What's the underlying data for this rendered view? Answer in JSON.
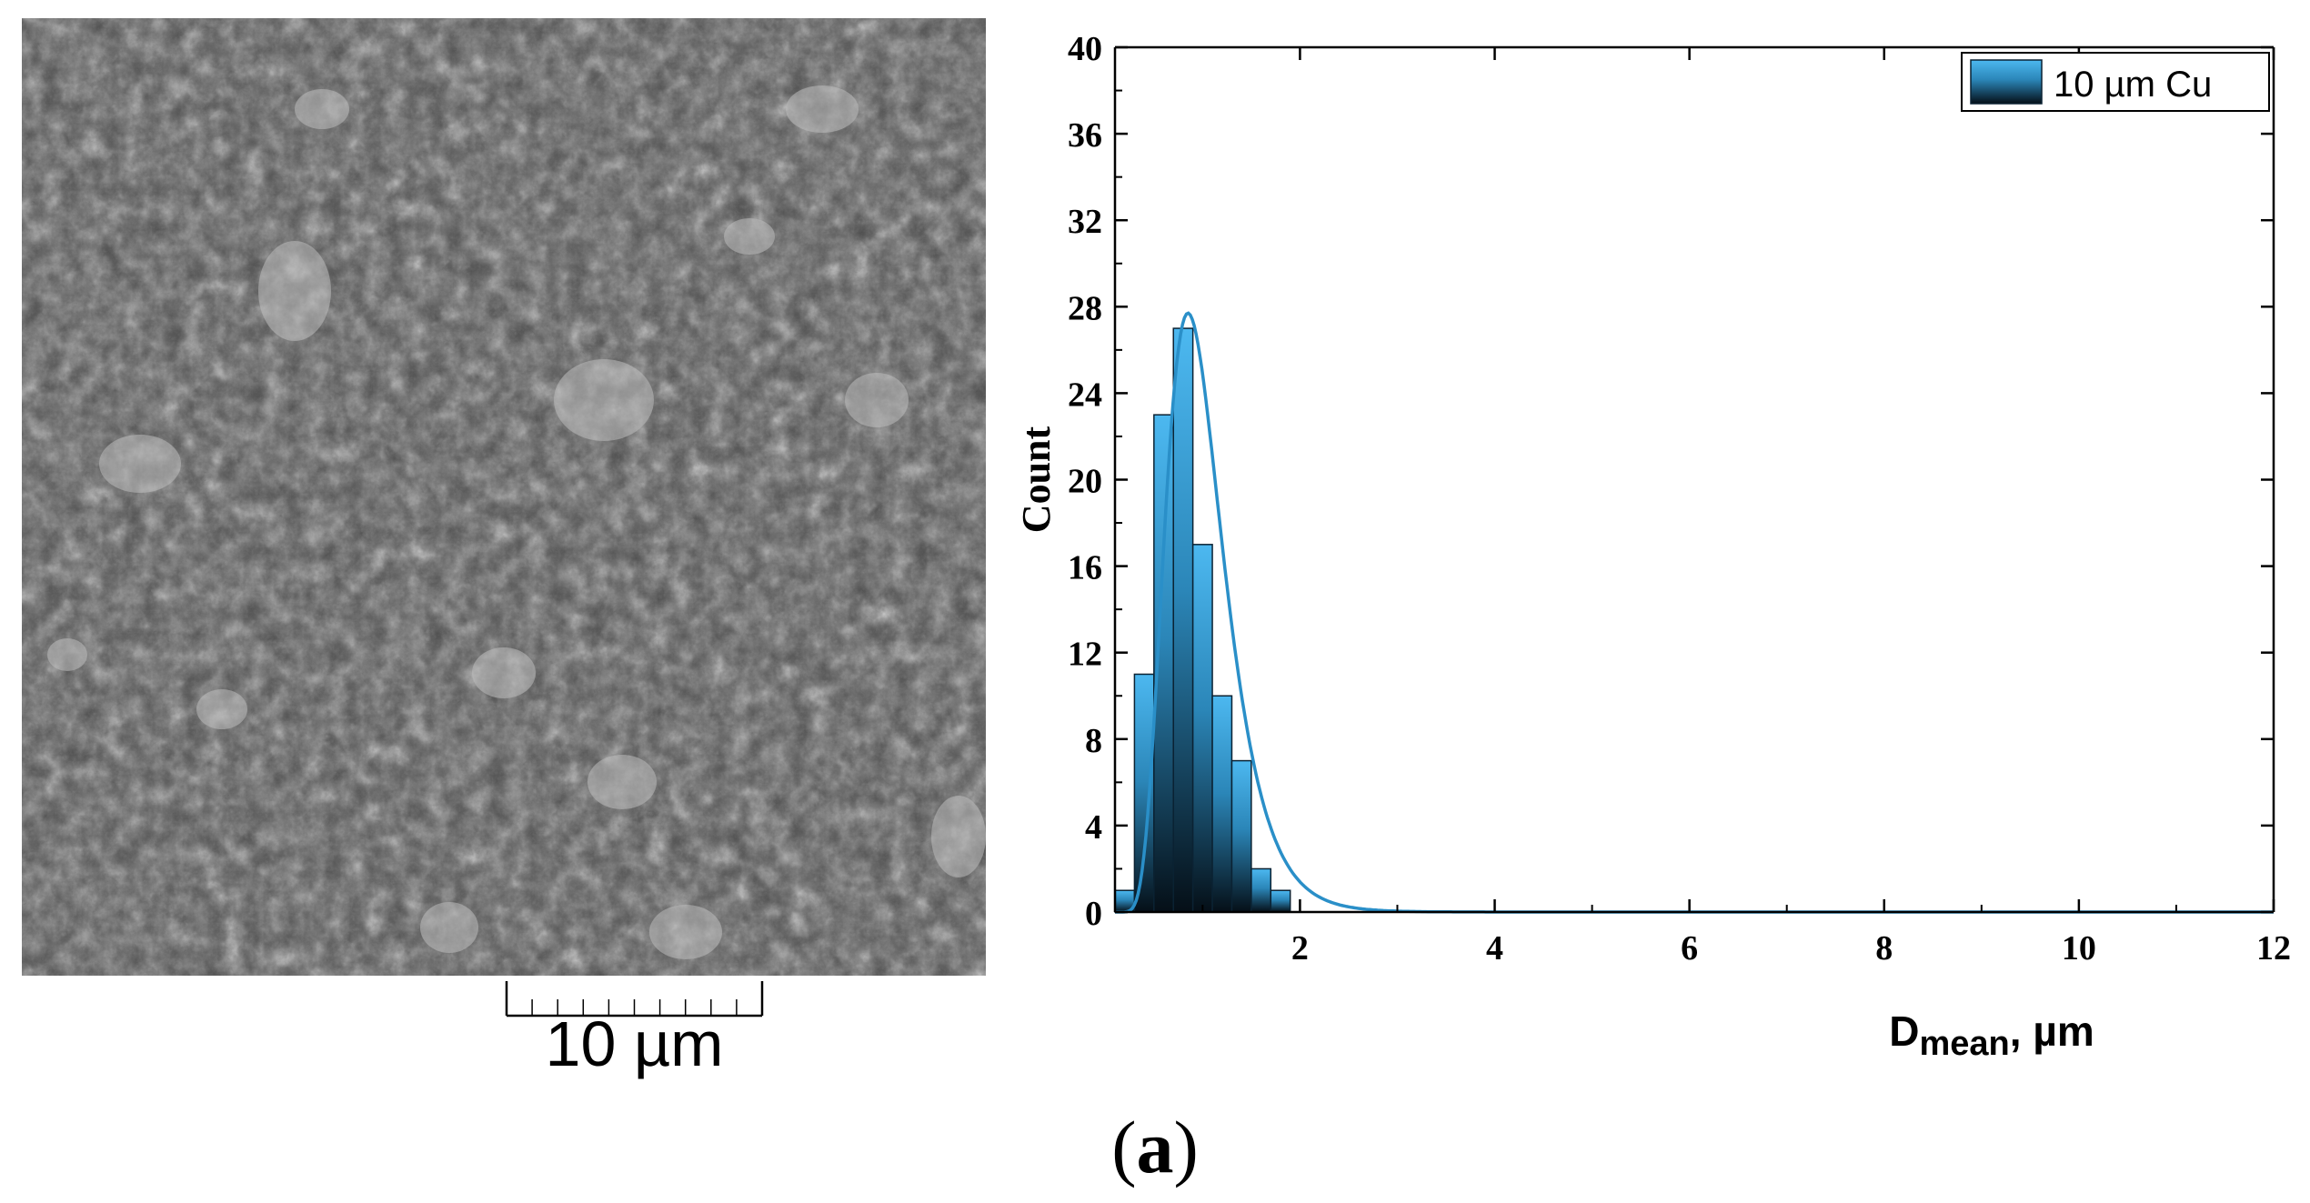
{
  "sem_image": {
    "scale_bar_label": "10 µm",
    "scale_bar_ticks": 10,
    "base_color": "#4e4e4e"
  },
  "chart_data": {
    "type": "bar",
    "title": "",
    "xlabel_main": "D",
    "xlabel_sub": "mean",
    "xlabel_suffix": ", µm",
    "ylabel": "Count",
    "xlim": [
      0.1,
      12
    ],
    "ylim": [
      0,
      40
    ],
    "xticks": [
      2,
      4,
      6,
      8,
      10,
      12
    ],
    "yticks": [
      0,
      4,
      8,
      12,
      16,
      20,
      24,
      28,
      32,
      36,
      40
    ],
    "grid": false,
    "legend_position": "top-right",
    "bar_width": 0.2,
    "bin_centers": [
      0.2,
      0.4,
      0.6,
      0.8,
      1.0,
      1.2,
      1.4,
      1.6,
      1.8
    ],
    "values": [
      1,
      11,
      23,
      27,
      17,
      10,
      7,
      2,
      1
    ],
    "series_name": "10 µm Cu",
    "bar_color_top": "#4cb8f0",
    "bar_color_bottom": "#050f17",
    "curve_color": "#2a8fc8",
    "fit_curve": {
      "type": "lognormal",
      "peak_x": 0.85,
      "peak_y": 27.7
    }
  },
  "panel_label": {
    "open": "(",
    "letter": "a",
    "close": ")"
  }
}
